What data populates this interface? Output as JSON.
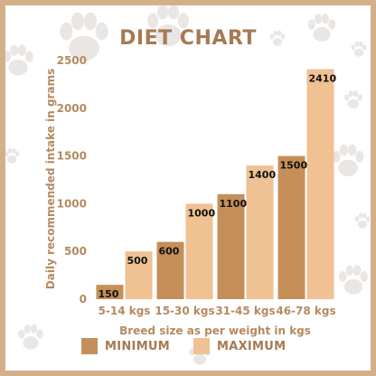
{
  "title": "DIET CHART",
  "colors": {
    "minimum": "#c58f5a",
    "maximum": "#efc193",
    "text": "#b58a60",
    "border": "#d4b08a",
    "paw": "#e9e6e4"
  },
  "legend": {
    "minimum_label": "MINIMUM",
    "maximum_label": "MAXIMUM"
  },
  "chart_data": {
    "type": "bar",
    "title": "DIET CHART",
    "xlabel": "Breed size as per weight in kgs",
    "ylabel": "Daily recommended intake in grams",
    "categories": [
      "5-14 kgs",
      "15-30 kgs",
      "31-45 kgs",
      "46-78 kgs"
    ],
    "series": [
      {
        "name": "MINIMUM",
        "values": [
          150,
          600,
          1100,
          1500
        ]
      },
      {
        "name": "MAXIMUM",
        "values": [
          500,
          1000,
          1400,
          2410
        ]
      }
    ],
    "ylim": [
      0,
      2500
    ],
    "yticks": [
      0,
      500,
      1000,
      1500,
      2000,
      2500
    ],
    "grid": false,
    "legend_position": "bottom"
  }
}
